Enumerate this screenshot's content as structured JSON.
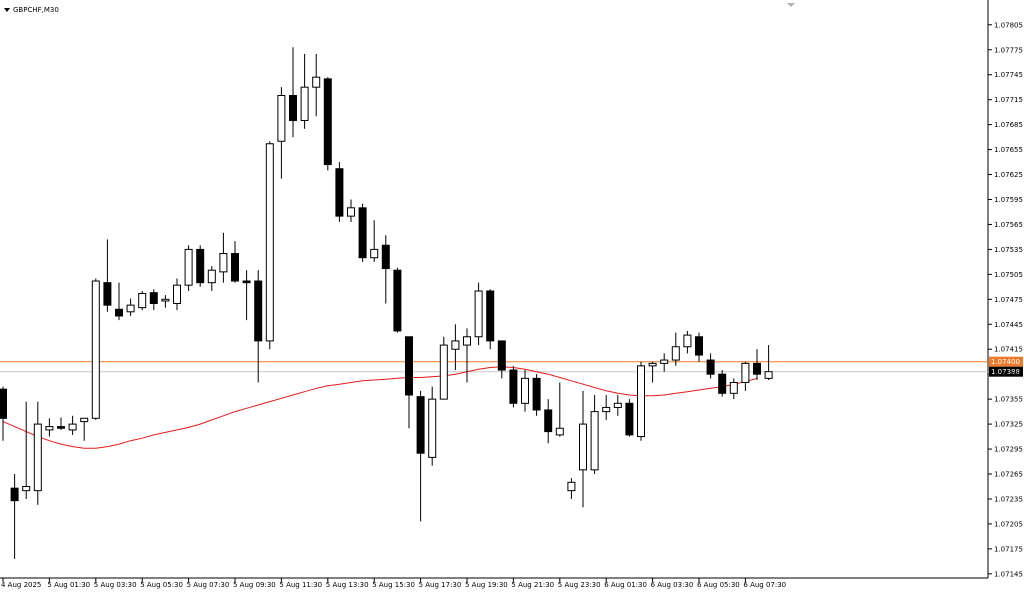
{
  "window": {
    "title": "GBPCHF,M30",
    "menu_icon": "triangle-down-icon"
  },
  "chart_data": {
    "type": "candlestick",
    "symbol": "GBPCHF",
    "timeframe": "M30",
    "title": "GBPCHF,M30",
    "ylim": [
      1.0714,
      1.0783
    ],
    "y_ticks": [
      "1.07805",
      "1.07775",
      "1.07745",
      "1.07715",
      "1.07685",
      "1.07655",
      "1.07625",
      "1.07595",
      "1.07565",
      "1.07535",
      "1.07505",
      "1.07475",
      "1.07445",
      "1.07415",
      "1.07385",
      "1.07355",
      "1.07325",
      "1.07295",
      "1.07265",
      "1.07235",
      "1.07205",
      "1.07175",
      "1.07145"
    ],
    "x_labels": [
      {
        "index": 0,
        "label": "4 Aug 2025"
      },
      {
        "index": 4,
        "label": "5 Aug 01:30"
      },
      {
        "index": 8,
        "label": "5 Aug 03:30"
      },
      {
        "index": 12,
        "label": "5 Aug 05:30"
      },
      {
        "index": 16,
        "label": "5 Aug 07:30"
      },
      {
        "index": 20,
        "label": "5 Aug 09:30"
      },
      {
        "index": 24,
        "label": "5 Aug 11:30"
      },
      {
        "index": 28,
        "label": "5 Aug 13:30"
      },
      {
        "index": 32,
        "label": "5 Aug 15:30"
      },
      {
        "index": 36,
        "label": "5 Aug 17:30"
      },
      {
        "index": 40,
        "label": "5 Aug 19:30"
      },
      {
        "index": 44,
        "label": "5 Aug 21:30"
      },
      {
        "index": 48,
        "label": "5 Aug 23:30"
      },
      {
        "index": 52,
        "label": "6 Aug 01:30"
      },
      {
        "index": 56,
        "label": "6 Aug 03:30"
      },
      {
        "index": 60,
        "label": "6 Aug 05:30"
      },
      {
        "index": 64,
        "label": "6 Aug 07:30"
      }
    ],
    "candles": [
      {
        "o": 1.07367,
        "h": 1.0737,
        "l": 1.07305,
        "c": 1.07332
      },
      {
        "o": 1.07248,
        "h": 1.07265,
        "l": 1.07163,
        "c": 1.07233
      },
      {
        "o": 1.07245,
        "h": 1.07352,
        "l": 1.07235,
        "c": 1.0725
      },
      {
        "o": 1.07245,
        "h": 1.07352,
        "l": 1.07228,
        "c": 1.07325
      },
      {
        "o": 1.07318,
        "h": 1.07332,
        "l": 1.0731,
        "c": 1.07322
      },
      {
        "o": 1.07322,
        "h": 1.07333,
        "l": 1.07318,
        "c": 1.0732
      },
      {
        "o": 1.07318,
        "h": 1.07335,
        "l": 1.07312,
        "c": 1.07325
      },
      {
        "o": 1.07328,
        "h": 1.07332,
        "l": 1.07305,
        "c": 1.07332
      },
      {
        "o": 1.07332,
        "h": 1.075,
        "l": 1.0733,
        "c": 1.07497
      },
      {
        "o": 1.07495,
        "h": 1.07547,
        "l": 1.0746,
        "c": 1.07468
      },
      {
        "o": 1.07463,
        "h": 1.07495,
        "l": 1.0745,
        "c": 1.07455
      },
      {
        "o": 1.0746,
        "h": 1.07476,
        "l": 1.07455,
        "c": 1.07468
      },
      {
        "o": 1.07465,
        "h": 1.07485,
        "l": 1.07462,
        "c": 1.07482
      },
      {
        "o": 1.07483,
        "h": 1.07487,
        "l": 1.07462,
        "c": 1.0747
      },
      {
        "o": 1.07473,
        "h": 1.0748,
        "l": 1.07465,
        "c": 1.07475
      },
      {
        "o": 1.0747,
        "h": 1.075,
        "l": 1.07462,
        "c": 1.07492
      },
      {
        "o": 1.07492,
        "h": 1.0754,
        "l": 1.07485,
        "c": 1.07535
      },
      {
        "o": 1.07535,
        "h": 1.0754,
        "l": 1.0749,
        "c": 1.07495
      },
      {
        "o": 1.07495,
        "h": 1.07515,
        "l": 1.07485,
        "c": 1.0751
      },
      {
        "o": 1.07508,
        "h": 1.07555,
        "l": 1.07495,
        "c": 1.0753
      },
      {
        "o": 1.0753,
        "h": 1.07545,
        "l": 1.07495,
        "c": 1.07497
      },
      {
        "o": 1.07497,
        "h": 1.0751,
        "l": 1.0745,
        "c": 1.07495
      },
      {
        "o": 1.07497,
        "h": 1.0751,
        "l": 1.07375,
        "c": 1.07425
      },
      {
        "o": 1.07425,
        "h": 1.07665,
        "l": 1.07415,
        "c": 1.07662
      },
      {
        "o": 1.07665,
        "h": 1.0773,
        "l": 1.0762,
        "c": 1.0772
      },
      {
        "o": 1.0772,
        "h": 1.07778,
        "l": 1.0767,
        "c": 1.0769
      },
      {
        "o": 1.0769,
        "h": 1.0777,
        "l": 1.0768,
        "c": 1.0773
      },
      {
        "o": 1.0773,
        "h": 1.0777,
        "l": 1.07695,
        "c": 1.07742
      },
      {
        "o": 1.0774,
        "h": 1.07742,
        "l": 1.0763,
        "c": 1.07637
      },
      {
        "o": 1.07632,
        "h": 1.0764,
        "l": 1.07568,
        "c": 1.07575
      },
      {
        "o": 1.07575,
        "h": 1.07595,
        "l": 1.07568,
        "c": 1.07585
      },
      {
        "o": 1.07585,
        "h": 1.0759,
        "l": 1.0752,
        "c": 1.07525
      },
      {
        "o": 1.07525,
        "h": 1.0757,
        "l": 1.0752,
        "c": 1.07535
      },
      {
        "o": 1.0754,
        "h": 1.07552,
        "l": 1.0747,
        "c": 1.07512
      },
      {
        "o": 1.0751,
        "h": 1.07513,
        "l": 1.07435,
        "c": 1.07437
      },
      {
        "o": 1.0743,
        "h": 1.0743,
        "l": 1.0732,
        "c": 1.0736
      },
      {
        "o": 1.07358,
        "h": 1.07365,
        "l": 1.07208,
        "c": 1.0729
      },
      {
        "o": 1.07285,
        "h": 1.0737,
        "l": 1.07275,
        "c": 1.07355
      },
      {
        "o": 1.07355,
        "h": 1.0743,
        "l": 1.07355,
        "c": 1.0742
      },
      {
        "o": 1.07415,
        "h": 1.07445,
        "l": 1.0739,
        "c": 1.07425
      },
      {
        "o": 1.0742,
        "h": 1.0744,
        "l": 1.07375,
        "c": 1.0743
      },
      {
        "o": 1.0743,
        "h": 1.07495,
        "l": 1.0742,
        "c": 1.07485
      },
      {
        "o": 1.07485,
        "h": 1.07487,
        "l": 1.07415,
        "c": 1.07425
      },
      {
        "o": 1.07425,
        "h": 1.07425,
        "l": 1.0738,
        "c": 1.0739
      },
      {
        "o": 1.0739,
        "h": 1.07395,
        "l": 1.07345,
        "c": 1.0735
      },
      {
        "o": 1.0735,
        "h": 1.0739,
        "l": 1.0734,
        "c": 1.0738
      },
      {
        "o": 1.0738,
        "h": 1.07385,
        "l": 1.07335,
        "c": 1.07342
      },
      {
        "o": 1.07342,
        "h": 1.07355,
        "l": 1.07302,
        "c": 1.07316
      },
      {
        "o": 1.07312,
        "h": 1.07375,
        "l": 1.0731,
        "c": 1.0732
      },
      {
        "o": 1.07245,
        "h": 1.0726,
        "l": 1.07235,
        "c": 1.07255
      },
      {
        "o": 1.0727,
        "h": 1.07365,
        "l": 1.07225,
        "c": 1.07325
      },
      {
        "o": 1.0727,
        "h": 1.0736,
        "l": 1.07265,
        "c": 1.0734
      },
      {
        "o": 1.0734,
        "h": 1.0736,
        "l": 1.0733,
        "c": 1.07345
      },
      {
        "o": 1.07345,
        "h": 1.0736,
        "l": 1.07335,
        "c": 1.0735
      },
      {
        "o": 1.0735,
        "h": 1.07355,
        "l": 1.0731,
        "c": 1.07312
      },
      {
        "o": 1.0731,
        "h": 1.074,
        "l": 1.07305,
        "c": 1.07395
      },
      {
        "o": 1.07395,
        "h": 1.074,
        "l": 1.07375,
        "c": 1.07398
      },
      {
        "o": 1.07398,
        "h": 1.0741,
        "l": 1.07388,
        "c": 1.07402
      },
      {
        "o": 1.07402,
        "h": 1.07435,
        "l": 1.07395,
        "c": 1.07418
      },
      {
        "o": 1.07418,
        "h": 1.07437,
        "l": 1.0741,
        "c": 1.07432
      },
      {
        "o": 1.0743,
        "h": 1.07435,
        "l": 1.074,
        "c": 1.07408
      },
      {
        "o": 1.07402,
        "h": 1.0741,
        "l": 1.0738,
        "c": 1.07385
      },
      {
        "o": 1.07385,
        "h": 1.0739,
        "l": 1.07358,
        "c": 1.07362
      },
      {
        "o": 1.07362,
        "h": 1.0738,
        "l": 1.07355,
        "c": 1.07375
      },
      {
        "o": 1.07375,
        "h": 1.074,
        "l": 1.07365,
        "c": 1.07398
      },
      {
        "o": 1.07398,
        "h": 1.07415,
        "l": 1.07378,
        "c": 1.07385
      },
      {
        "o": 1.0738,
        "h": 1.0742,
        "l": 1.07378,
        "c": 1.07388
      }
    ],
    "moving_average": {
      "color": "#e51b1b",
      "values": [
        1.07328,
        1.07322,
        1.07316,
        1.0731,
        1.07305,
        1.07301,
        1.07298,
        1.07296,
        1.07296,
        1.07298,
        1.07301,
        1.07305,
        1.07308,
        1.07312,
        1.07315,
        1.07318,
        1.07321,
        1.07325,
        1.0733,
        1.07335,
        1.0734,
        1.07344,
        1.07348,
        1.07352,
        1.07356,
        1.0736,
        1.07364,
        1.07368,
        1.07371,
        1.07373,
        1.07375,
        1.07377,
        1.07378,
        1.07379,
        1.0738,
        1.07381,
        1.07381,
        1.07382,
        1.07383,
        1.07385,
        1.07388,
        1.07391,
        1.07393,
        1.07394,
        1.07393,
        1.07391,
        1.07388,
        1.07385,
        1.07381,
        1.07377,
        1.07373,
        1.07369,
        1.07365,
        1.07362,
        1.0736,
        1.07359,
        1.07359,
        1.0736,
        1.07362,
        1.07364,
        1.07366,
        1.07368,
        1.0737,
        1.07373,
        1.07376,
        1.0738
      ]
    },
    "price_lines": [
      {
        "label": "1.07400",
        "value": 1.074,
        "color": "#f07a2b",
        "text_color": "#ffffff"
      },
      {
        "label": "1.07388",
        "value": 1.07388,
        "color": "#c8c8c8",
        "text_color": "#ffffff",
        "label_bg": "#000000"
      }
    ],
    "colors": {
      "bull_fill": "#ffffff",
      "bear_fill": "#000000",
      "candle_outline": "#000000",
      "background": "#ffffff",
      "axis": "#000000"
    },
    "grid": false,
    "legend": "none"
  }
}
